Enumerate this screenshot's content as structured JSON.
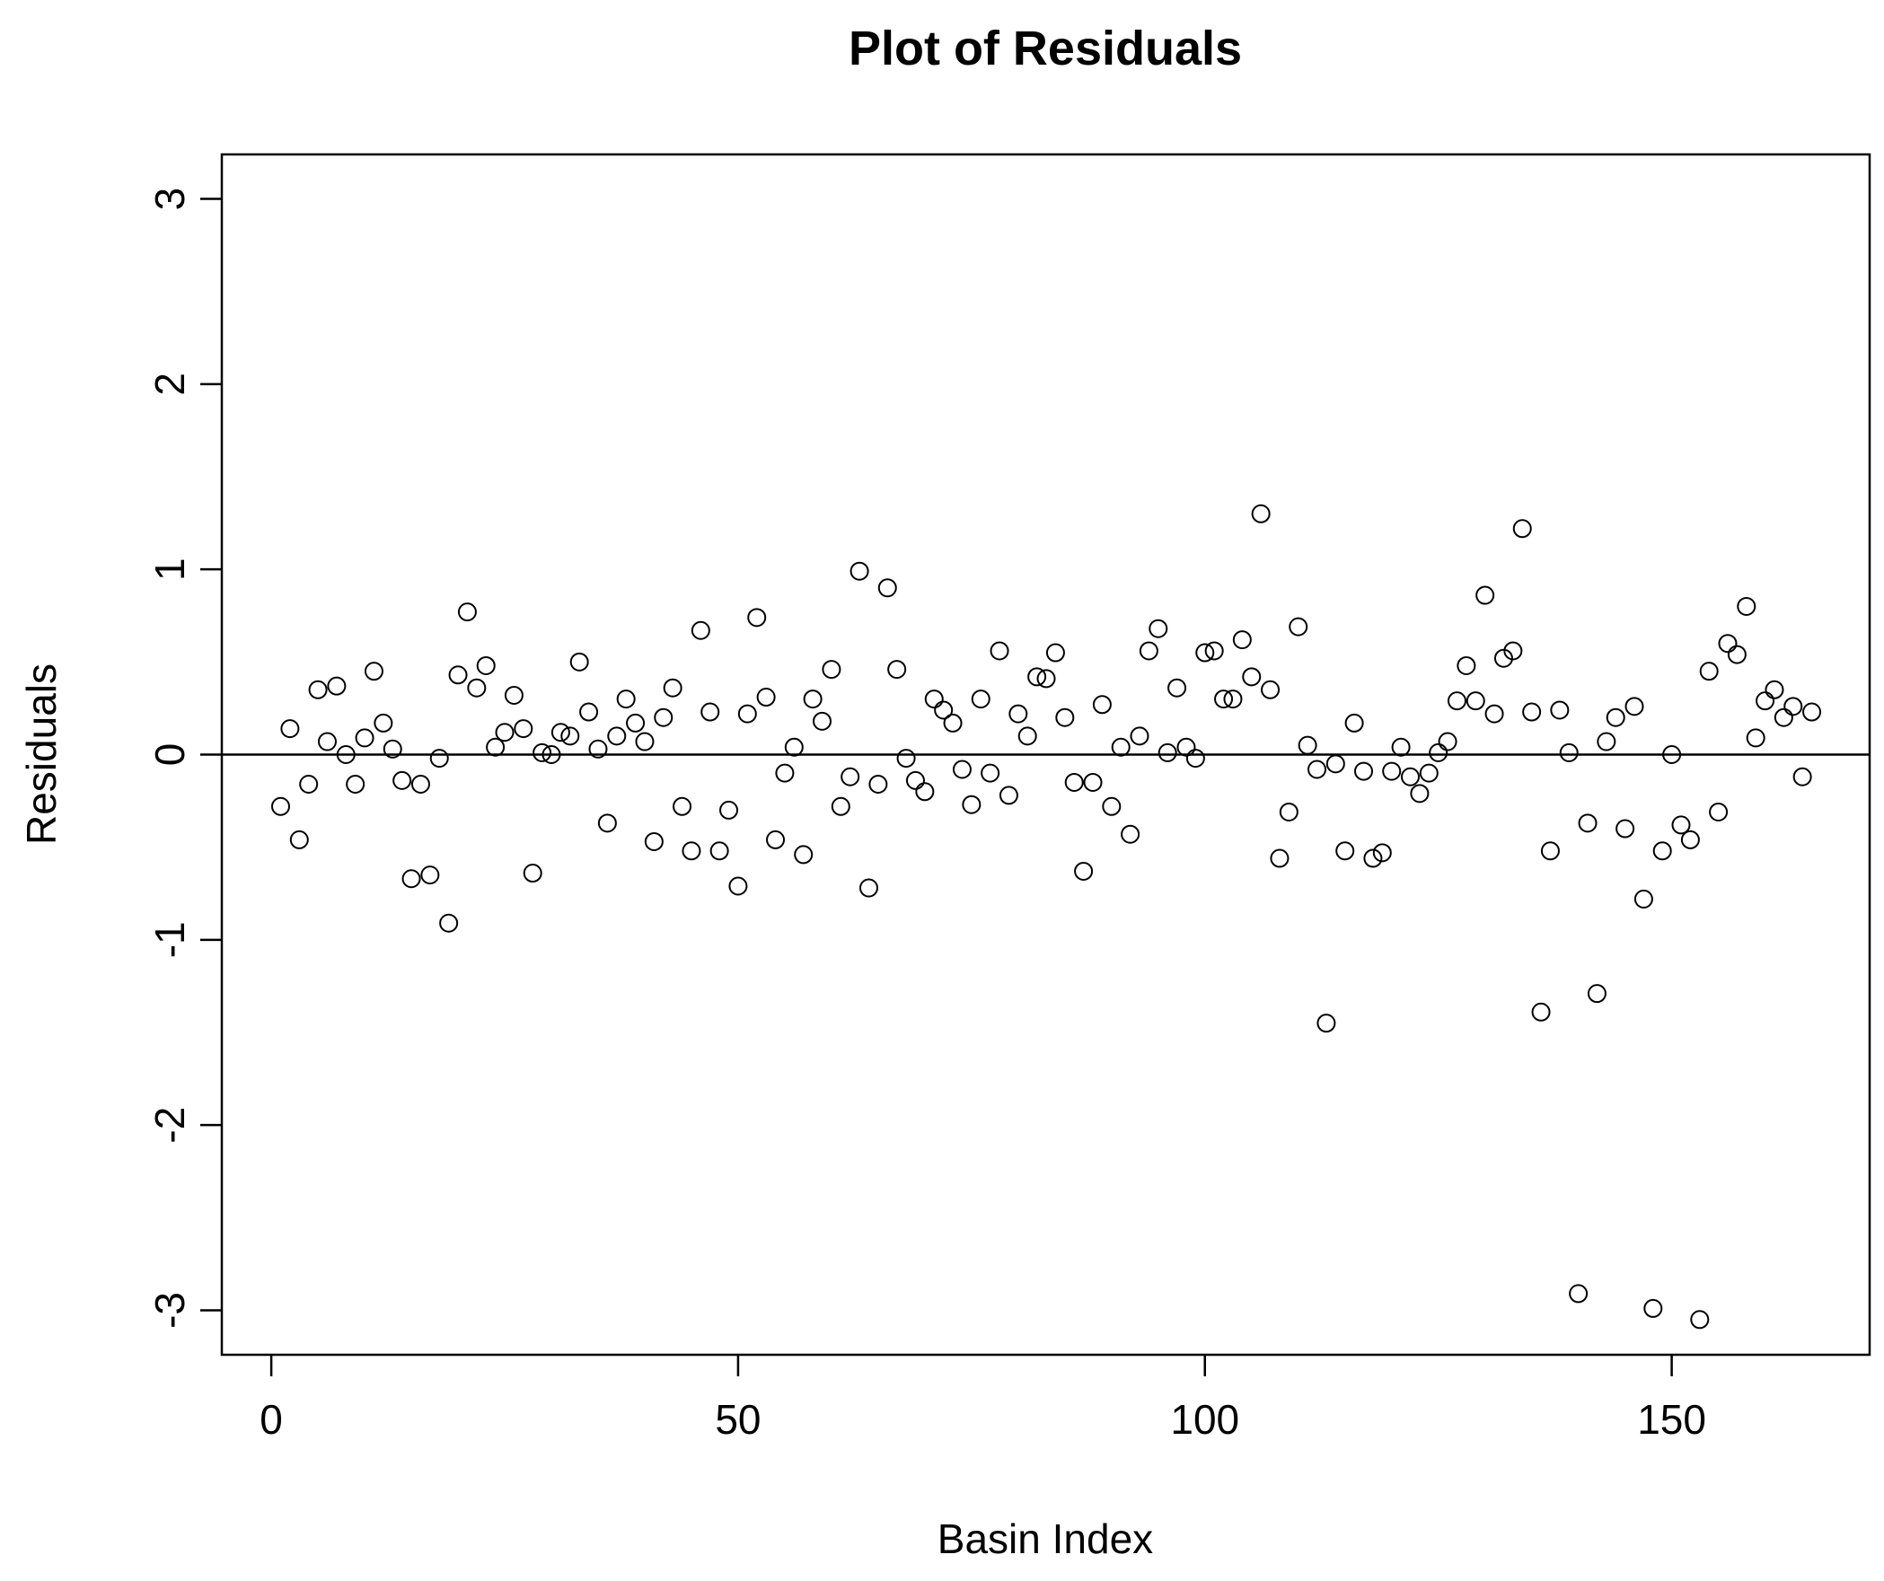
{
  "chart_data": {
    "type": "scatter",
    "title": "Plot of Residuals",
    "x_label": "Basin Index",
    "y_label": "Residuals",
    "x": [
      1,
      2,
      3,
      4,
      5,
      6,
      7,
      8,
      9,
      10,
      11,
      12,
      13,
      14,
      15,
      16,
      17,
      18,
      19,
      20,
      21,
      22,
      23,
      24,
      25,
      26,
      27,
      28,
      29,
      30,
      31,
      32,
      33,
      34,
      35,
      36,
      37,
      38,
      39,
      40,
      41,
      42,
      43,
      44,
      45,
      46,
      47,
      48,
      49,
      50,
      51,
      52,
      53,
      54,
      55,
      56,
      57,
      58,
      59,
      60,
      61,
      62,
      63,
      64,
      65,
      66,
      67,
      68,
      69,
      70,
      71,
      72,
      73,
      74,
      75,
      76,
      77,
      78,
      79,
      80,
      81,
      82,
      83,
      84,
      85,
      86,
      87,
      88,
      89,
      90,
      91,
      92,
      93,
      94,
      95,
      96,
      97,
      98,
      99,
      100,
      101,
      102,
      103,
      104,
      105,
      106,
      107,
      108,
      109,
      110,
      111,
      112,
      113,
      114,
      115,
      116,
      117,
      118,
      119,
      120,
      121,
      122,
      123,
      124,
      125,
      126,
      127,
      128,
      129,
      130,
      131,
      132,
      133,
      134,
      135,
      136,
      137,
      138,
      139,
      140,
      141,
      142,
      143,
      144,
      145,
      146,
      147,
      148,
      149,
      150,
      151,
      152,
      153,
      154,
      155,
      156,
      157,
      158,
      159,
      160,
      161,
      162,
      163,
      164,
      165
    ],
    "values": [
      -0.28,
      0.14,
      -0.46,
      -0.16,
      0.35,
      0.07,
      0.37,
      0.0,
      -0.16,
      0.09,
      0.45,
      0.17,
      0.03,
      -0.14,
      -0.67,
      -0.16,
      -0.65,
      -0.02,
      -0.91,
      0.43,
      0.77,
      0.36,
      0.48,
      0.04,
      0.12,
      0.32,
      0.14,
      -0.64,
      0.01,
      0.0,
      0.12,
      0.1,
      0.5,
      0.23,
      0.03,
      -0.37,
      0.1,
      0.3,
      0.17,
      0.07,
      -0.47,
      0.2,
      0.36,
      -0.28,
      -0.52,
      0.67,
      0.23,
      -0.52,
      -0.3,
      -0.71,
      0.22,
      0.74,
      0.31,
      -0.46,
      -0.1,
      0.04,
      -0.54,
      0.3,
      0.18,
      0.46,
      -0.28,
      -0.12,
      0.99,
      -0.72,
      -0.16,
      0.9,
      0.46,
      -0.02,
      -0.14,
      -0.2,
      0.3,
      0.24,
      0.17,
      -0.08,
      -0.27,
      0.3,
      -0.1,
      0.56,
      -0.22,
      0.22,
      0.1,
      0.42,
      0.41,
      0.55,
      0.2,
      -0.15,
      -0.63,
      -0.15,
      0.27,
      -0.28,
      0.04,
      -0.43,
      0.1,
      0.56,
      0.68,
      0.01,
      0.36,
      0.04,
      -0.02,
      0.55,
      0.56,
      0.3,
      0.3,
      0.62,
      0.42,
      1.3,
      0.35,
      -0.56,
      -0.31,
      0.69,
      0.05,
      -0.08,
      -1.45,
      -0.05,
      -0.52,
      0.17,
      -0.09,
      -0.56,
      -0.53,
      -0.09,
      0.04,
      -0.12,
      -0.21,
      -0.1,
      0.01,
      0.07,
      0.29,
      0.48,
      0.29,
      0.86,
      0.22,
      0.52,
      0.56,
      1.22,
      0.23,
      -1.39,
      -0.52,
      0.24,
      0.01,
      -2.91,
      -0.37,
      -1.29,
      0.07,
      0.2,
      -0.4,
      0.26,
      -0.78,
      -2.99,
      -0.52,
      0.0,
      -0.38,
      -0.46,
      -3.05,
      0.45,
      -0.31,
      0.6,
      0.54,
      0.8,
      0.09,
      0.29,
      0.35,
      0.2,
      0.26,
      -0.12,
      0.23
    ],
    "color": "#000000",
    "xlim": [
      -5.3,
      171.2
    ],
    "ylim": [
      -3.24,
      3.24
    ],
    "xticks": [
      0,
      50,
      100,
      150
    ],
    "yticks": [
      -3,
      -2,
      -1,
      0,
      1,
      2,
      3
    ],
    "hline": 0
  }
}
